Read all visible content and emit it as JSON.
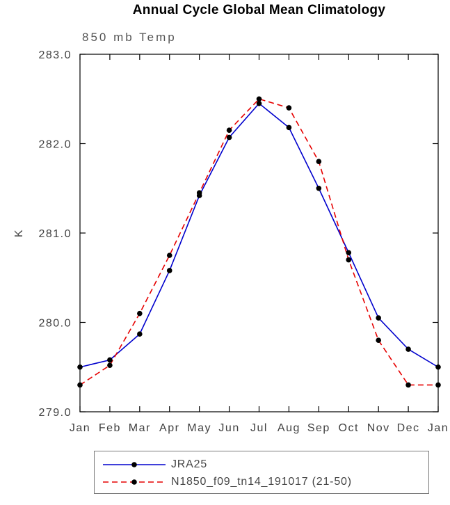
{
  "chart_data": {
    "type": "line",
    "title": "Annual Cycle Global Mean Climatology",
    "subtitle": "850 mb Temp",
    "xlabel": "",
    "ylabel": "K",
    "ylim": [
      279.0,
      283.0
    ],
    "yticks": [
      279.0,
      280.0,
      281.0,
      282.0,
      283.0
    ],
    "categories": [
      "Jan",
      "Feb",
      "Mar",
      "Apr",
      "May",
      "Jun",
      "Jul",
      "Aug",
      "Sep",
      "Oct",
      "Nov",
      "Dec",
      "Jan"
    ],
    "grid": false,
    "legend_position": "bottom",
    "axis_color": "#000000",
    "marker_color": "#000000",
    "series": [
      {
        "name": "JRA25",
        "color": "#0000cd",
        "style": "solid",
        "values": [
          279.5,
          279.58,
          279.87,
          280.58,
          281.42,
          282.07,
          282.45,
          282.18,
          281.5,
          280.78,
          280.05,
          279.7,
          279.5
        ]
      },
      {
        "name": "N1850_f09_tn14_191017 (21-50)",
        "color": "#e60000",
        "style": "dashed",
        "values": [
          279.3,
          279.52,
          280.1,
          280.75,
          281.45,
          282.15,
          282.5,
          282.4,
          281.8,
          280.7,
          279.8,
          279.3,
          279.3
        ]
      }
    ]
  }
}
